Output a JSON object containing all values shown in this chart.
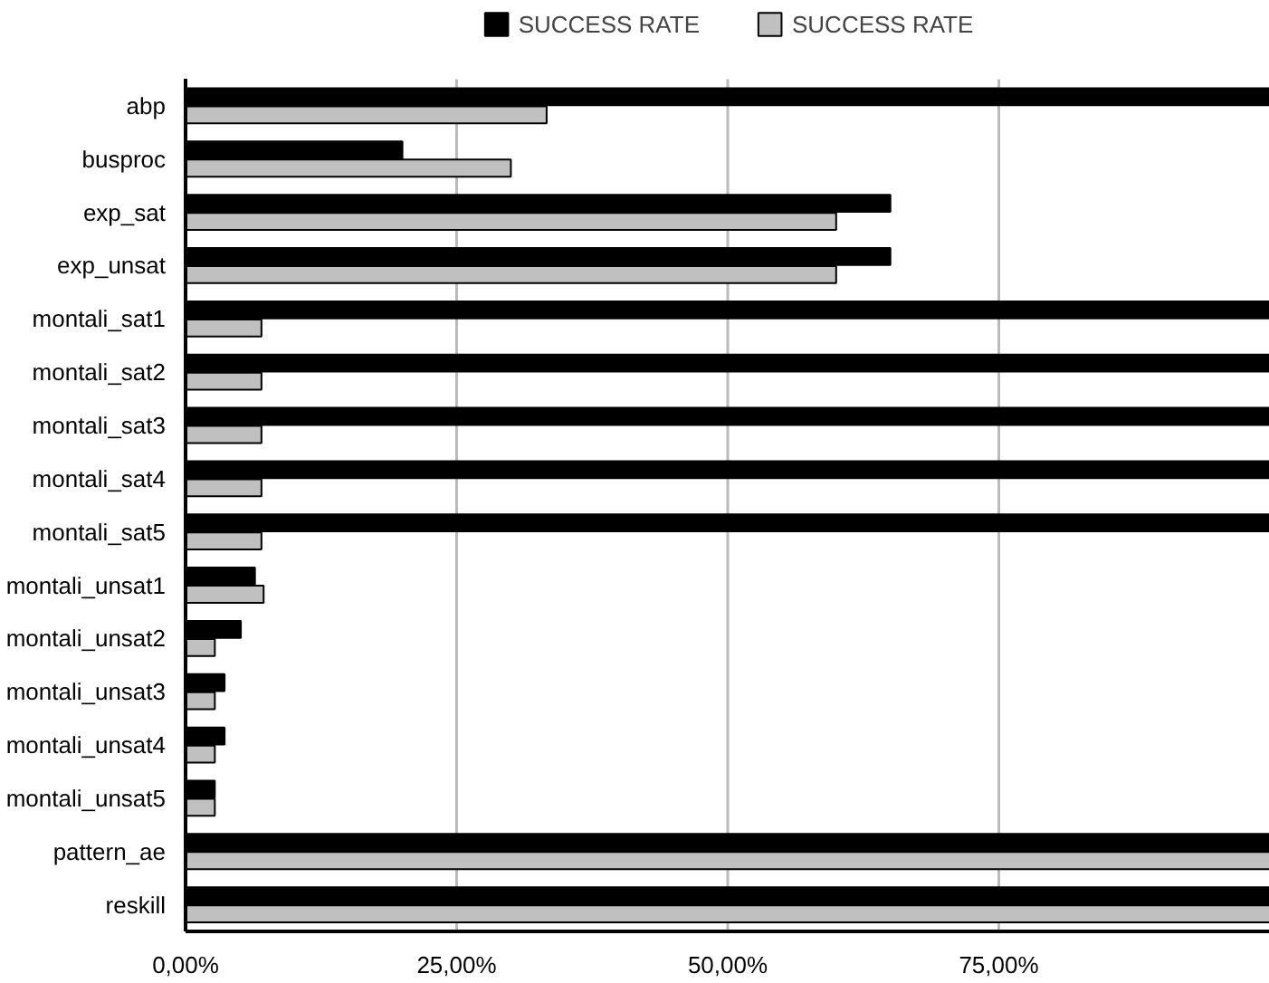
{
  "chart_data": {
    "type": "bar",
    "orientation": "horizontal",
    "categories": [
      "abp",
      "busproc",
      "exp_sat",
      "exp_unsat",
      "montali_sat1",
      "montali_sat2",
      "montali_sat3",
      "montali_sat4",
      "montali_sat5",
      "montali_unsat1",
      "montali_unsat2",
      "montali_unsat3",
      "montali_unsat4",
      "montali_unsat5",
      "pattern_ae",
      "reskill"
    ],
    "series": [
      {
        "name": "SUCCESS RATE",
        "color": "#000000",
        "values": [
          100,
          20,
          65,
          65,
          100,
          100,
          100,
          100,
          100,
          6.4,
          5.1,
          3.6,
          3.6,
          2.7,
          100,
          100
        ]
      },
      {
        "name": "SUCCESS RATE",
        "color": "#c0c0c0",
        "values": [
          33.3,
          30,
          60,
          60,
          7,
          7,
          7,
          7,
          7,
          7.2,
          2.7,
          2.7,
          2.7,
          2.7,
          100,
          100
        ]
      }
    ],
    "xlim": [
      0,
      100
    ],
    "xticks": [
      {
        "value": 0,
        "label": "0,00%"
      },
      {
        "value": 25,
        "label": "25,00%"
      },
      {
        "value": 50,
        "label": "50,00%"
      },
      {
        "value": 75,
        "label": "75,00%"
      }
    ],
    "grid": "x",
    "legend": "top"
  }
}
